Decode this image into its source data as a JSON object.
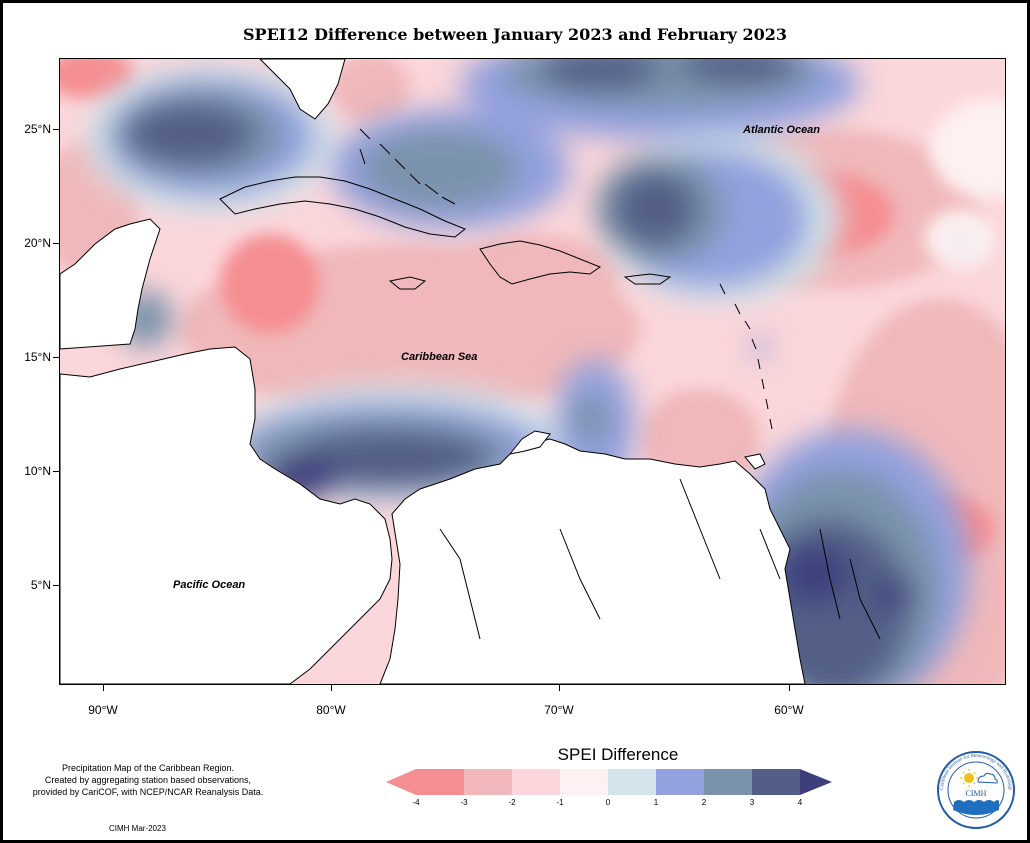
{
  "title": "SPEI12 Difference between January 2023 and February 2023",
  "map": {
    "lat_ticks": [
      "25°N",
      "20°N",
      "15°N",
      "10°N",
      "5°N"
    ],
    "lon_ticks": [
      "90°W",
      "80°W",
      "70°W",
      "60°W"
    ],
    "labels": {
      "atlantic": "Atlantic Ocean",
      "caribbean": "Caribbean Sea",
      "pacific": "Pacific Ocean"
    }
  },
  "legend": {
    "title": "SPEI Difference",
    "ticks": [
      "-4",
      "-3",
      "-2",
      "-1",
      "0",
      "1",
      "2",
      "3",
      "4"
    ],
    "colors": [
      "#f58e92",
      "#f0b8ba",
      "#fbd6da",
      "#fdf1f1",
      "#d3e5ea",
      "#93a1de",
      "#7a93ab",
      "#525e87",
      "#3d3f7d"
    ]
  },
  "credit": {
    "line1": "Precipitation Map of the Caribbean Region.",
    "line2": "Created by aggregating station based observations,",
    "line3": "provided by CariCOF, with NCEP/NCAR Reanalysis Data."
  },
  "stamp": "CIMH Mar-2023",
  "logo": {
    "name": "CIMH",
    "ring_text": "Caribbean Institute for Meteorology and Hydrology",
    "icons": [
      "sun-icon",
      "cloud-icon",
      "waves-icon"
    ]
  },
  "colors": {
    "strong_dry": "#f58e92",
    "dry": "#f0b8ba",
    "light_dry": "#fbd6da",
    "neutral": "#fdf1f1",
    "light_wet": "#d3e5ea",
    "wet": "#93a1de",
    "wetter": "#7a93ab",
    "very_wet": "#525e87",
    "extreme_wet": "#3d3f7d"
  }
}
